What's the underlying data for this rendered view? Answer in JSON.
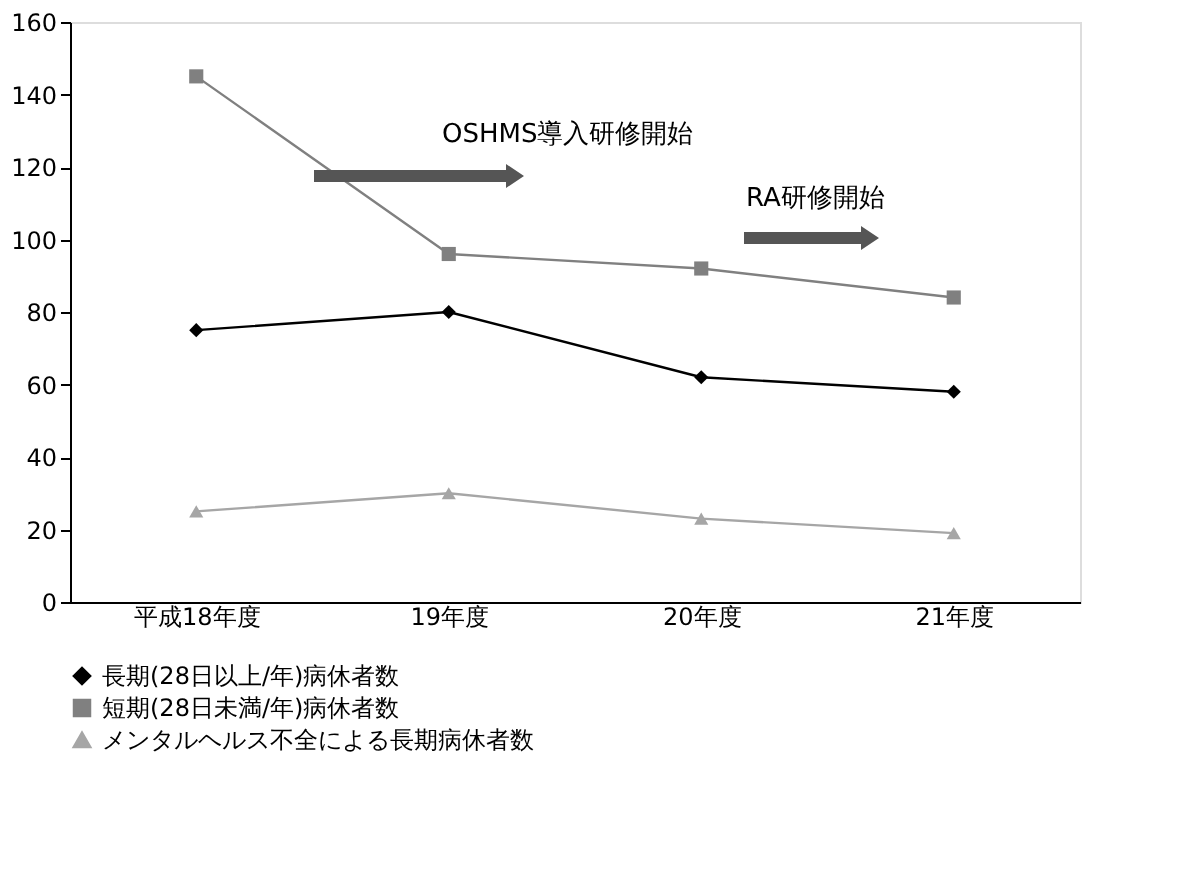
{
  "chart_data": {
    "type": "line",
    "categories": [
      "平成18年度",
      "19年度",
      "20年度",
      "21年度"
    ],
    "series": [
      {
        "name": "長期(28日以上/年)病休者数",
        "color": "#000000",
        "marker": "diamond",
        "values": [
          75,
          80,
          62,
          58
        ]
      },
      {
        "name": "短期(28日未満/年)病休者数",
        "color": "#808080",
        "marker": "square",
        "values": [
          145,
          96,
          92,
          84
        ]
      },
      {
        "name": "メンタルヘルス不全による長期病休者数",
        "color": "#a6a6a6",
        "marker": "triangle",
        "values": [
          25,
          30,
          23,
          19
        ]
      }
    ],
    "ylim": [
      0,
      160
    ],
    "yticks": [
      0,
      20,
      40,
      60,
      80,
      100,
      120,
      140,
      160
    ],
    "grid": false,
    "legend": "bottom",
    "annotations": [
      "OSHMS導入研修開始",
      "RA研修開始"
    ]
  }
}
